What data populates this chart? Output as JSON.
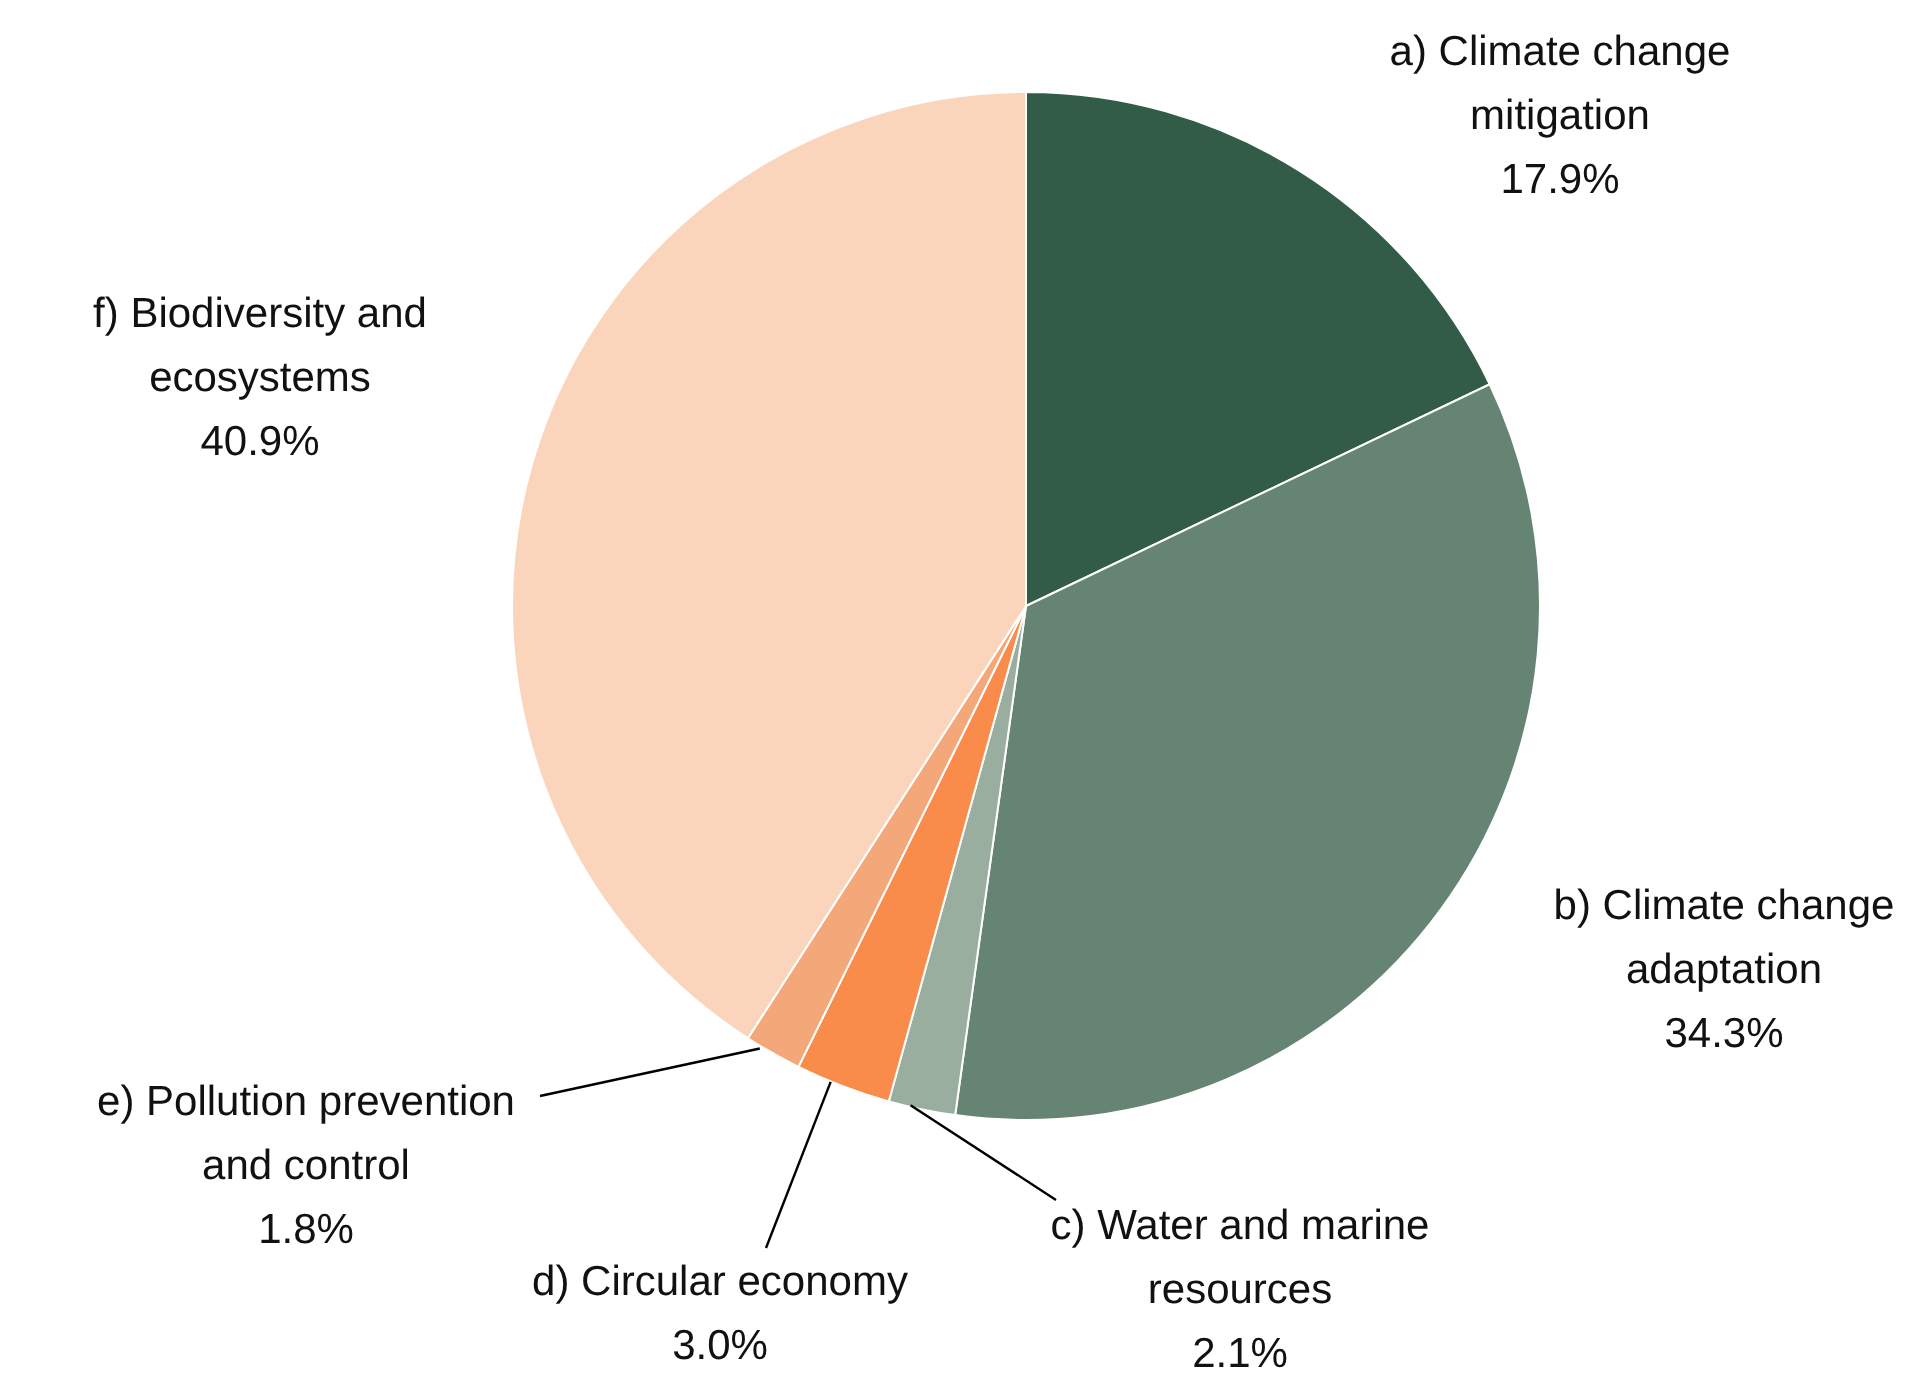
{
  "chart_data": {
    "type": "pie",
    "categories": [
      "a) Climate change mitigation",
      "b) Climate change adaptation",
      "c) Water and marine resources",
      "d) Circular economy",
      "e) Pollution prevention and control",
      "f) Biodiversity and ecosystems"
    ],
    "values": [
      17.9,
      34.3,
      2.1,
      3.0,
      1.8,
      40.9
    ],
    "colors": [
      "#325c47",
      "#668473",
      "#9aae9f",
      "#f98c4a",
      "#f4a87a",
      "#fad5bc"
    ],
    "value_labels": [
      "17.9%",
      "34.3%",
      "2.1%",
      "3.0%",
      "1.8%",
      "40.9%"
    ]
  }
}
